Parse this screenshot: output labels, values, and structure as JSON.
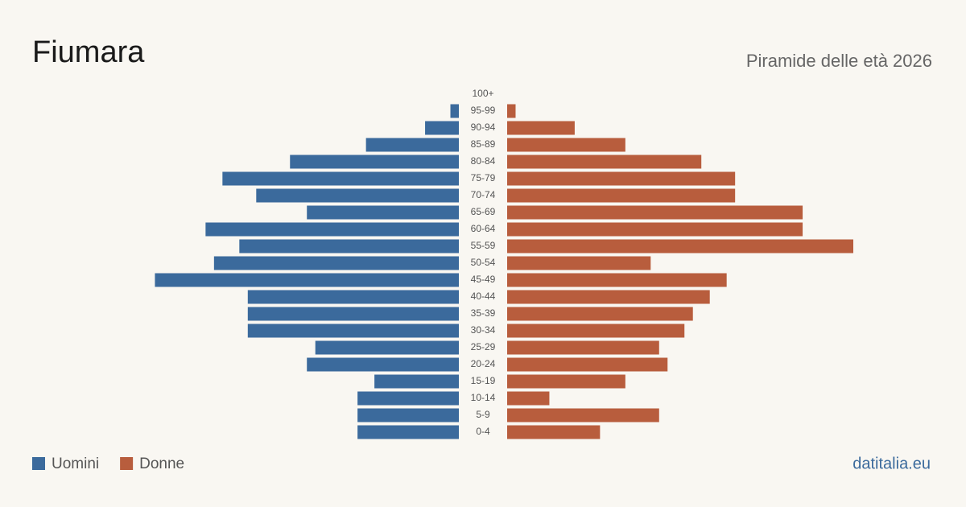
{
  "chart_data": {
    "type": "pyramid",
    "title": "Fiumara",
    "subtitle": "Piramide delle età 2026",
    "source": "datitalia.eu",
    "categories": [
      "100+",
      "95-99",
      "90-94",
      "85-89",
      "80-84",
      "75-79",
      "70-74",
      "65-69",
      "60-64",
      "55-59",
      "50-54",
      "45-49",
      "40-44",
      "35-39",
      "30-34",
      "25-29",
      "20-24",
      "15-19",
      "10-14",
      "5-9",
      "0-4"
    ],
    "series": [
      {
        "name": "Uomini",
        "color": "#3b6a9c",
        "values": [
          0,
          1,
          4,
          11,
          20,
          28,
          24,
          18,
          30,
          26,
          29,
          36,
          25,
          25,
          25,
          17,
          18,
          10,
          12,
          12,
          12
        ]
      },
      {
        "name": "Donne",
        "color": "#b85d3d",
        "values": [
          0,
          1,
          8,
          14,
          23,
          27,
          27,
          35,
          35,
          41,
          17,
          26,
          24,
          22,
          21,
          18,
          19,
          14,
          5,
          18,
          11
        ]
      }
    ]
  }
}
